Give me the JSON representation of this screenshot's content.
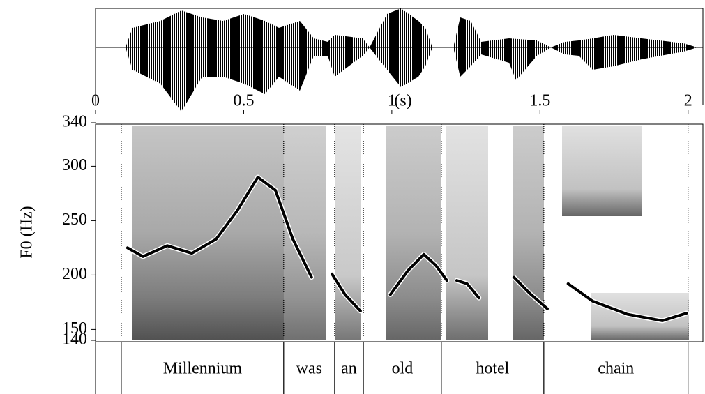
{
  "chart_data": {
    "type": "line",
    "ylabel": "F0 (Hz)",
    "xlabel": "(s)",
    "xlim": [
      0,
      2.05
    ],
    "xticks": [
      0,
      0.5,
      1,
      1.5,
      2
    ],
    "ylim": [
      140,
      340
    ],
    "yticks": [
      140,
      150,
      200,
      250,
      300,
      340
    ],
    "x": [
      0.108,
      0.16,
      0.242,
      0.325,
      0.407,
      0.478,
      0.548,
      0.607,
      0.666,
      0.729,
      null,
      0.798,
      0.842,
      0.894,
      null,
      0.995,
      1.054,
      1.108,
      1.148,
      1.186,
      null,
      1.219,
      1.254,
      1.294,
      null,
      1.412,
      1.466,
      1.525,
      null,
      1.595,
      1.678,
      1.795,
      1.913,
      1.995
    ],
    "series": [
      {
        "color": "#000000",
        "values": [
          225,
          217,
          227,
          220,
          233,
          259,
          290,
          278,
          233,
          198,
          null,
          201,
          182,
          167,
          null,
          182,
          204,
          219,
          209,
          195,
          null,
          195,
          192,
          179,
          null,
          198,
          183,
          169,
          null,
          192,
          176,
          164,
          158,
          165
        ]
      }
    ],
    "words": [
      {
        "label": "Millennium",
        "start": 0.087,
        "end": 0.635
      },
      {
        "label": "was",
        "start": 0.635,
        "end": 0.807
      },
      {
        "label": "an",
        "start": 0.807,
        "end": 0.904
      },
      {
        "label": "old",
        "start": 0.904,
        "end": 1.167
      },
      {
        "label": "hotel",
        "start": 1.167,
        "end": 1.513
      },
      {
        "label": "chain",
        "start": 1.513,
        "end": 2.0
      }
    ]
  }
}
